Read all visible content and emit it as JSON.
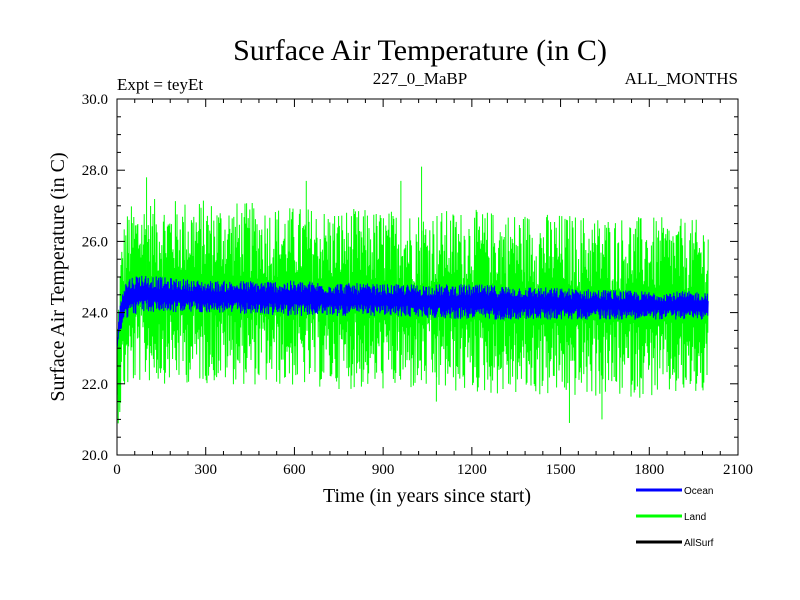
{
  "chart_data": {
    "type": "line",
    "title": "Surface Air Temperature (in C)",
    "subtitle_left": "Expt = teyEt",
    "subtitle_center": "227_0_MaBP",
    "subtitle_right": "ALL_MONTHS",
    "xlabel": "Time (in years since start)",
    "ylabel": "Surface Air Temperature (in C)",
    "xlim": [
      0,
      2100
    ],
    "ylim": [
      20.0,
      30.0
    ],
    "x_ticks": [
      0,
      300,
      600,
      900,
      1200,
      1500,
      1800,
      2100
    ],
    "x_tick_labels": [
      "0",
      "300",
      "600",
      "900",
      "1200",
      "1500",
      "1800",
      "2100"
    ],
    "y_ticks": [
      20,
      22,
      24,
      26,
      28,
      30
    ],
    "y_tick_labels": [
      "20.0",
      "22.0",
      "24.0",
      "26.0",
      "28.0",
      "30.0"
    ],
    "x_end": 2000,
    "legend_position": "bottom-right",
    "series": [
      {
        "name": "Land",
        "color": "#00ff00",
        "envelope_x": [
          0,
          10,
          20,
          40,
          80,
          150,
          300,
          600,
          900,
          1200,
          1500,
          1800,
          2000
        ],
        "envelope_low": [
          20.8,
          21.0,
          21.6,
          21.8,
          22.0,
          22.0,
          22.0,
          21.9,
          21.8,
          21.7,
          21.6,
          21.6,
          21.6
        ],
        "envelope_high": [
          23.5,
          25.5,
          26.5,
          27.0,
          27.2,
          27.2,
          27.2,
          27.0,
          26.9,
          26.9,
          26.8,
          26.7,
          26.6
        ],
        "extremes": [
          [
            1030,
            28.1
          ],
          [
            100,
            27.8
          ],
          [
            640,
            27.7
          ],
          [
            960,
            27.7
          ],
          [
            1080,
            21.5
          ],
          [
            1530,
            20.9
          ],
          [
            1640,
            21.0
          ]
        ]
      },
      {
        "name": "Ocean",
        "color": "#0000ff",
        "envelope_x": [
          0,
          10,
          20,
          40,
          80,
          150,
          300,
          600,
          900,
          1200,
          1500,
          1800,
          2000
        ],
        "envelope_low": [
          23.0,
          23.4,
          23.7,
          23.9,
          24.0,
          24.0,
          24.0,
          23.9,
          23.9,
          23.8,
          23.8,
          23.8,
          23.8
        ],
        "envelope_high": [
          23.0,
          24.4,
          24.8,
          25.0,
          25.1,
          25.0,
          24.9,
          24.9,
          24.8,
          24.8,
          24.7,
          24.6,
          24.6
        ]
      },
      {
        "name": "AllSurf",
        "color": "#000000"
      }
    ]
  }
}
